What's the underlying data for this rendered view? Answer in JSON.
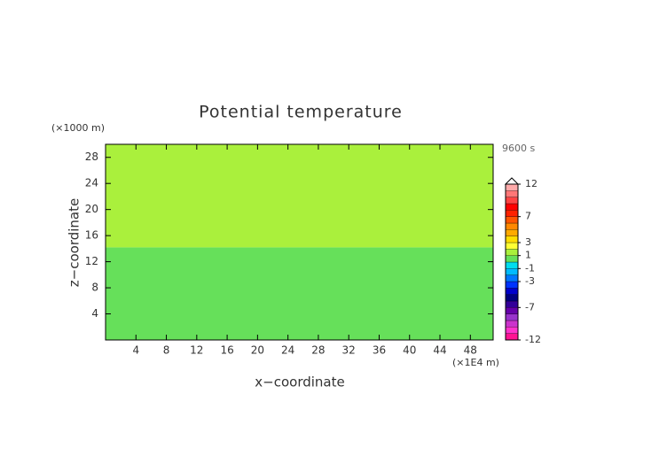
{
  "chart_data": {
    "type": "heatmap",
    "title": "Potential temperature",
    "xlabel": "x−coordinate",
    "ylabel": "z−coordinate",
    "xunit": "(×1E4 m)",
    "yunit": "(×1000 m)",
    "time": "9600 s",
    "xlim": [
      0,
      51
    ],
    "ylim": [
      0,
      30
    ],
    "xticks": [
      4,
      8,
      12,
      16,
      20,
      24,
      28,
      32,
      36,
      40,
      44,
      48
    ],
    "yticks": [
      4,
      8,
      12,
      16,
      20,
      24,
      28
    ],
    "regions": [
      {
        "y": [
          0,
          14.2
        ],
        "value": 0.5
      },
      {
        "y": [
          14.2,
          30
        ],
        "value": 1.5
      }
    ],
    "clim": [
      -12,
      12
    ],
    "cticks": [
      12,
      7,
      3,
      1,
      -1,
      -3,
      -7,
      -12
    ],
    "colors": [
      "#ff1493",
      "#ff33cc",
      "#cc33cc",
      "#9933cc",
      "#6600aa",
      "#330099",
      "#000080",
      "#0000cc",
      "#0033ff",
      "#0077ff",
      "#00bbff",
      "#00ddee",
      "#66e05a",
      "#aaf03c",
      "#ffff33",
      "#ffdd00",
      "#ffaa00",
      "#ff8800",
      "#ff5500",
      "#ff2200",
      "#ff0000",
      "#ff4444",
      "#ff7777",
      "#ffaaaa"
    ]
  }
}
